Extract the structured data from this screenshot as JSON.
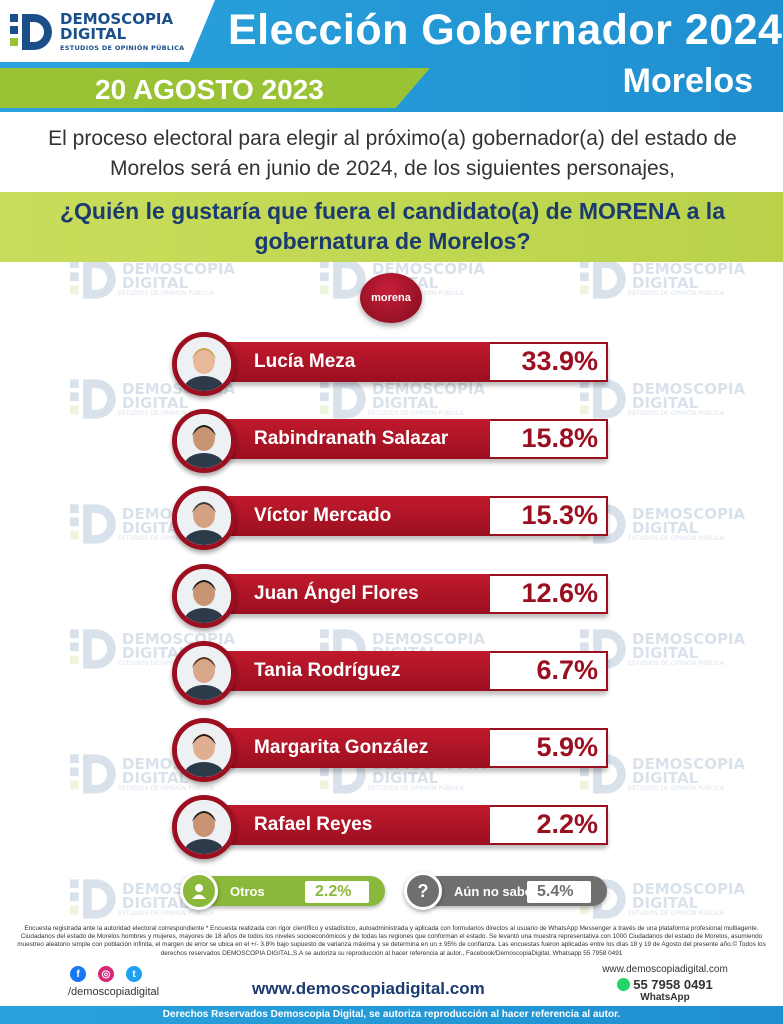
{
  "header": {
    "brand_line1": "DEMOSCOPIA",
    "brand_line2": "DIGITAL",
    "brand_tagline": "ESTUDIOS DE OPINIÓN PÚBLICA",
    "title": "Elección Gobernador 2024",
    "state": "Morelos",
    "date": "20 AGOSTO 2023"
  },
  "intro": "El proceso electoral para elegir al próximo(a) gobernador(a) del estado de Morelos será en junio de 2024, de los siguientes personajes,",
  "question": "¿Quién le gustaría que fuera el candidato(a) de MORENA a la gobernatura de Morelos?",
  "party_logo_text": "morena",
  "chart_data": {
    "type": "bar",
    "title": "¿Quién le gustaría que fuera el candidato(a) de MORENA a la gobernatura de Morelos?",
    "unit": "%",
    "categories": [
      "Lucía Meza",
      "Rabindranath Salazar",
      "Víctor Mercado",
      "Juan Ángel Flores",
      "Tania Rodríguez",
      "Margarita González",
      "Rafael Reyes",
      "Otros",
      "Aún no sabe"
    ],
    "values": [
      33.9,
      15.8,
      15.3,
      12.6,
      6.7,
      5.9,
      2.2,
      2.2,
      5.4
    ],
    "labels": [
      "33.9%",
      "15.8%",
      "15.3%",
      "12.6%",
      "6.7%",
      "5.9%",
      "2.2%",
      "2.2%",
      "5.4%"
    ],
    "bar_color": "#9b0f21",
    "others_color": "#8ab83a",
    "undecided_color": "#6f6f6f"
  },
  "watermark": {
    "line1": "DEMOSCOPIA",
    "line2": "DIGITAL",
    "line3": "ESTUDIOS DE OPINIÓN PÚBLICA"
  },
  "footer": {
    "fine_print": "Encuesta registrada ante la autoridad electoral correspondiente * Encuesta realizada con rigor científico y estadístico, autoadministrada y aplicada con formularios directos al usuario de WhatsApp Messenger a través de una plataforma profesional multiagente. Ciudadanos del estado de Morelos hombres y mujeres, mayores de 18 años de todos los niveles socioeconómicos y de todas las regiones que conforman el estado. Se levantó una muestra representativa con 1000 Ciudadanos del estado de Morelos, asumiendo muestreo aleatorio simple con población infinita, el margen de error se ubica en el +/- 3.8% bajo supuesto de varianza máxima y se determina en un ± 95% de confianza. Las encuestas fueron aplicadas entre los días 18 y 19 de Agosto del presente año.© Todos los derechos reservados DEMOSCOPIA DIGITAL,S.A se autoriza su reproducción al hacer referencia al autor., Facebook/DemoscopiaDigital, Whatsapp 55 7958 0491",
    "social_handle": "/demoscopiadigital",
    "website": "www.demoscopiadigital.com",
    "contact_web": "www.demoscopiadigital.com",
    "phone": "55 7958 0491",
    "whatsapp_label": "WhatsApp",
    "rights": "Derechos Reservados Demoscopia Digital, se autoriza reproducción al hacer referencia al autor."
  }
}
